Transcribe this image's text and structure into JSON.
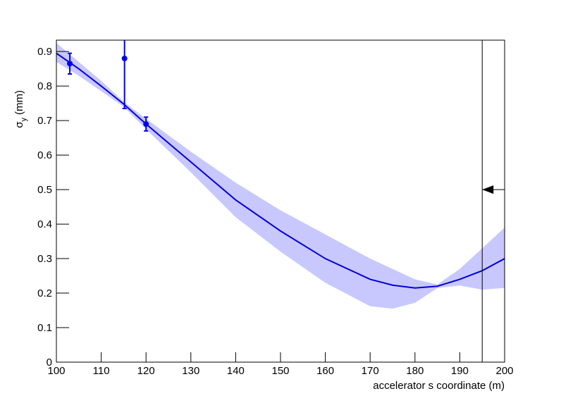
{
  "chart_data": {
    "type": "fit",
    "xlabel": "accelerator s coordinate (m)",
    "ylabel": {
      "symbol": "σ",
      "subscript": "y",
      "unit": "(mm)"
    },
    "xlim": [
      100,
      200
    ],
    "ylim": [
      0,
      0.933
    ],
    "xticks": [
      100,
      110,
      120,
      130,
      140,
      150,
      160,
      170,
      180,
      190,
      200
    ],
    "yticks": [
      0,
      0.1,
      0.2,
      0.3,
      0.4,
      0.5,
      0.6,
      0.7,
      0.8,
      0.9
    ],
    "fit": {
      "color": "#0000dd",
      "band_color": "#c8c8ff",
      "x": [
        100,
        105,
        110,
        115,
        120,
        130,
        140,
        150,
        160,
        170,
        175,
        180,
        185,
        190,
        195,
        200
      ],
      "values": [
        0.895,
        0.85,
        0.8,
        0.748,
        0.69,
        0.58,
        0.47,
        0.38,
        0.3,
        0.24,
        0.223,
        0.215,
        0.22,
        0.24,
        0.265,
        0.3
      ],
      "band_upper": [
        0.925,
        0.87,
        0.815,
        0.755,
        0.705,
        0.61,
        0.52,
        0.44,
        0.37,
        0.3,
        0.27,
        0.24,
        0.225,
        0.27,
        0.33,
        0.39
      ],
      "band_lower": [
        0.87,
        0.83,
        0.785,
        0.74,
        0.675,
        0.55,
        0.42,
        0.32,
        0.23,
        0.162,
        0.155,
        0.172,
        0.215,
        0.222,
        0.21,
        0.215
      ]
    },
    "points": {
      "color": "#0000ee",
      "x": [
        103,
        115.2,
        120
      ],
      "values": [
        0.865,
        0.88,
        0.69
      ],
      "errors": [
        0.03,
        0.145,
        0.02
      ]
    },
    "marker": {
      "x": 195,
      "y": 0.5
    }
  }
}
